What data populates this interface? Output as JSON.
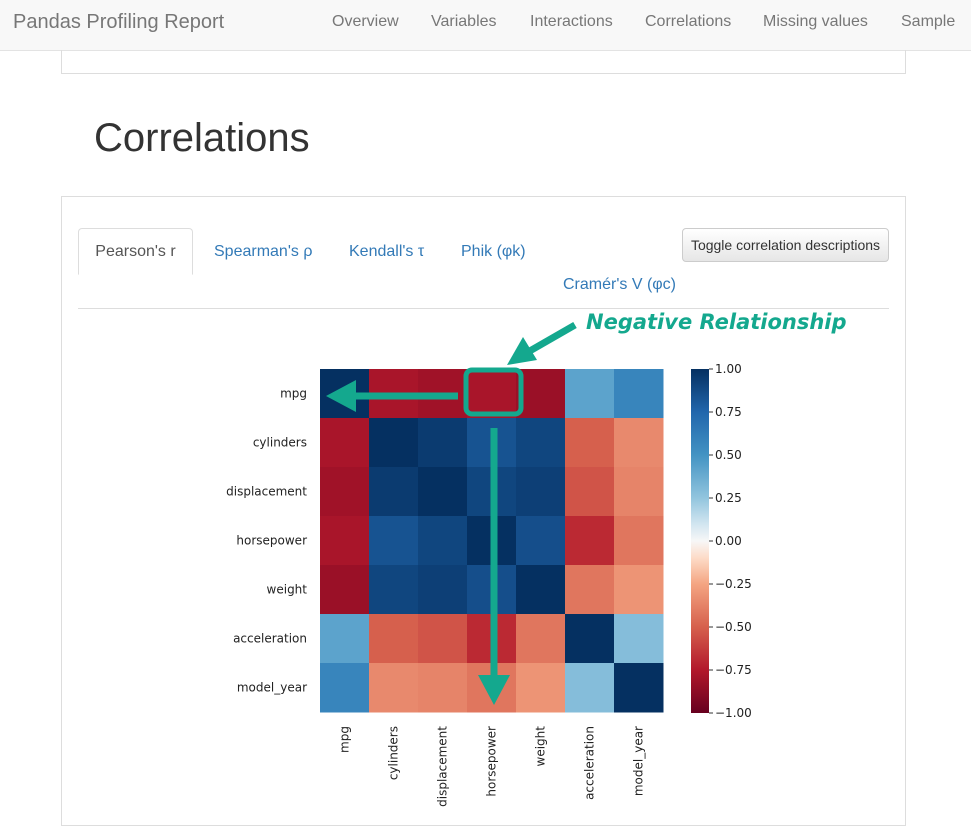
{
  "navbar": {
    "brand": "Pandas Profiling Report",
    "items": [
      "Overview",
      "Variables",
      "Interactions",
      "Correlations",
      "Missing values",
      "Sample"
    ]
  },
  "section": {
    "title": "Correlations"
  },
  "tabs": [
    {
      "label": "Pearson's r",
      "active": true
    },
    {
      "label": "Spearman's ρ",
      "active": false
    },
    {
      "label": "Kendall's τ",
      "active": false
    },
    {
      "label": "Phik (φk)",
      "active": false
    },
    {
      "label": "Cramér's V (φc)",
      "active": false
    }
  ],
  "toggle_button": {
    "label": "Toggle correlation descriptions"
  },
  "annotation": {
    "label": "Negative Relationship",
    "color": "#14a88e"
  },
  "chart_data": {
    "type": "heatmap",
    "variables": [
      "mpg",
      "cylinders",
      "displacement",
      "horsepower",
      "weight",
      "acceleration",
      "model_year"
    ],
    "matrix": [
      [
        1.0,
        -0.78,
        -0.81,
        -0.78,
        -0.83,
        0.42,
        0.58
      ],
      [
        -0.78,
        1.0,
        0.95,
        0.84,
        0.9,
        -0.5,
        -0.35
      ],
      [
        -0.81,
        0.95,
        1.0,
        0.9,
        0.93,
        -0.54,
        -0.37
      ],
      [
        -0.78,
        0.84,
        0.9,
        1.0,
        0.86,
        -0.69,
        -0.42
      ],
      [
        -0.83,
        0.9,
        0.93,
        0.86,
        1.0,
        -0.42,
        -0.31
      ],
      [
        0.42,
        -0.5,
        -0.54,
        -0.69,
        -0.42,
        1.0,
        0.29
      ],
      [
        0.58,
        -0.35,
        -0.37,
        -0.42,
        -0.31,
        0.29,
        1.0
      ]
    ],
    "colorbar": {
      "range": [
        -1,
        1
      ],
      "ticks": [
        1.0,
        0.75,
        0.5,
        0.25,
        0.0,
        -0.25,
        -0.5,
        -0.75,
        -1.0
      ],
      "tick_labels": [
        "1.00",
        "0.75",
        "0.50",
        "0.25",
        "0.00",
        "−0.25",
        "−0.50",
        "−0.75",
        "−1.00"
      ]
    },
    "colormap": "RdBu",
    "grid": false
  }
}
